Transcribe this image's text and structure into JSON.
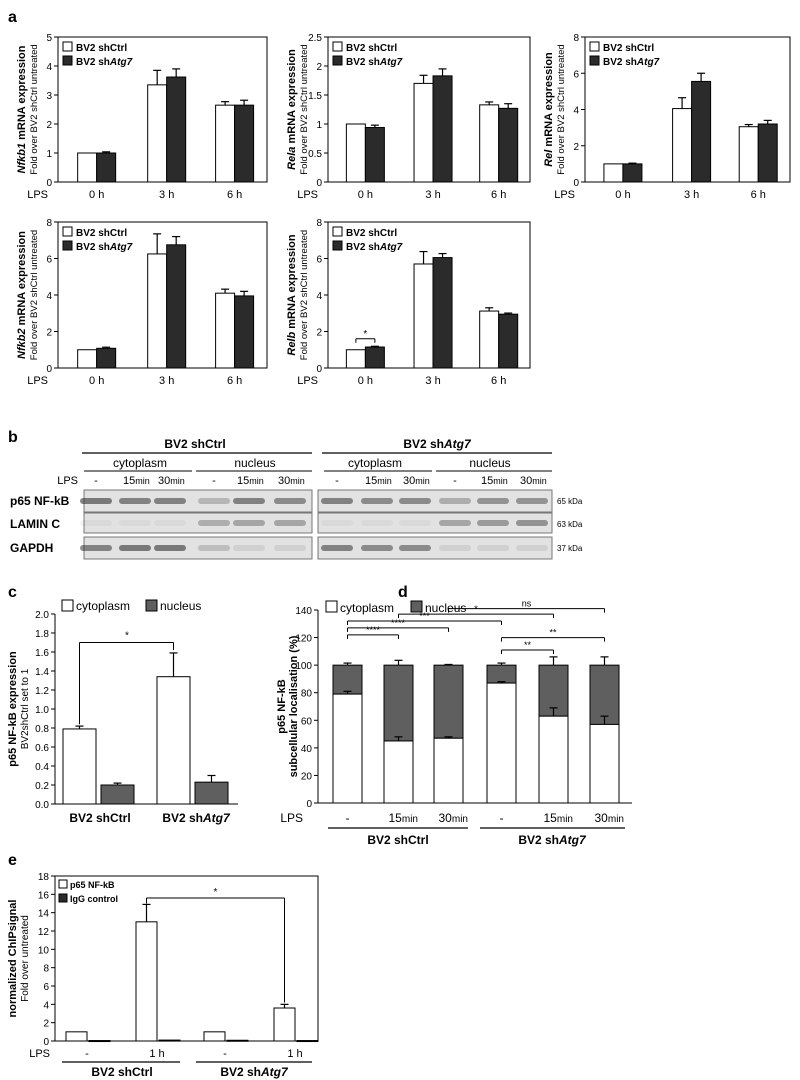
{
  "panels": {
    "a": "a",
    "b": "b",
    "c": "c",
    "d": "d",
    "e": "e"
  },
  "panel_a": {
    "ylabel_prefix": "mRNA expression",
    "ylabel_sub": "Fold over BV2 shCtrl untreated",
    "lps_label": "LPS",
    "timepoints": [
      "0 h",
      "3 h",
      "6 h"
    ],
    "legend": [
      "BV2 shCtrl",
      "BV2 sh",
      "Atg7"
    ],
    "colors": {
      "shCtrl": "#ffffff",
      "shAtg7": "#2b2b2b"
    }
  },
  "chart_data": [
    {
      "id": "a1",
      "type": "bar",
      "gene": "Nfkb1",
      "categories": [
        "0 h",
        "3 h",
        "6 h"
      ],
      "series": [
        {
          "name": "BV2 shCtrl",
          "values": [
            1.0,
            3.35,
            2.65
          ],
          "errors": [
            0.0,
            0.5,
            0.12
          ]
        },
        {
          "name": "BV2 shAtg7",
          "values": [
            1.0,
            3.62,
            2.65
          ],
          "errors": [
            0.04,
            0.28,
            0.17
          ]
        }
      ],
      "ylim": [
        0,
        5
      ],
      "yticks": [
        0,
        1,
        2,
        3,
        4,
        5
      ]
    },
    {
      "id": "a2",
      "type": "bar",
      "gene": "Rela",
      "categories": [
        "0 h",
        "3 h",
        "6 h"
      ],
      "series": [
        {
          "name": "BV2 shCtrl",
          "values": [
            1.0,
            1.7,
            1.33
          ],
          "errors": [
            0.0,
            0.14,
            0.05
          ]
        },
        {
          "name": "BV2 shAtg7",
          "values": [
            0.94,
            1.83,
            1.27
          ],
          "errors": [
            0.04,
            0.12,
            0.08
          ]
        }
      ],
      "ylim": [
        0,
        2.5
      ],
      "yticks": [
        0.0,
        0.5,
        1.0,
        1.5,
        2.0,
        2.5
      ]
    },
    {
      "id": "a3",
      "type": "bar",
      "gene": "Rel",
      "categories": [
        "0 h",
        "3 h",
        "6 h"
      ],
      "series": [
        {
          "name": "BV2 shCtrl",
          "values": [
            1.0,
            4.05,
            3.05
          ],
          "errors": [
            0.0,
            0.6,
            0.12
          ]
        },
        {
          "name": "BV2 shAtg7",
          "values": [
            1.0,
            5.55,
            3.2
          ],
          "errors": [
            0.04,
            0.45,
            0.2
          ]
        }
      ],
      "ylim": [
        0,
        8
      ],
      "yticks": [
        0,
        2,
        4,
        6,
        8
      ]
    },
    {
      "id": "a4",
      "type": "bar",
      "gene": "Nfkb2",
      "categories": [
        "0 h",
        "3 h",
        "6 h"
      ],
      "series": [
        {
          "name": "BV2 shCtrl",
          "values": [
            1.0,
            6.25,
            4.1
          ],
          "errors": [
            0.0,
            1.1,
            0.22
          ]
        },
        {
          "name": "BV2 shAtg7",
          "values": [
            1.08,
            6.75,
            3.95
          ],
          "errors": [
            0.06,
            0.45,
            0.25
          ]
        }
      ],
      "ylim": [
        0,
        8
      ],
      "yticks": [
        0,
        2,
        4,
        6,
        8
      ]
    },
    {
      "id": "a5",
      "type": "bar",
      "gene": "Relb",
      "categories": [
        "0 h",
        "3 h",
        "6 h"
      ],
      "series": [
        {
          "name": "BV2 shCtrl",
          "values": [
            1.0,
            5.7,
            3.12
          ],
          "errors": [
            0.0,
            0.68,
            0.18
          ]
        },
        {
          "name": "BV2 shAtg7",
          "values": [
            1.15,
            6.05,
            2.95
          ],
          "errors": [
            0.04,
            0.22,
            0.06
          ]
        }
      ],
      "ylim": [
        0,
        8
      ],
      "yticks": [
        0,
        2,
        4,
        6,
        8
      ],
      "annotations": [
        {
          "label": "*",
          "between": "0 h"
        }
      ]
    },
    {
      "id": "c",
      "type": "bar",
      "ylabel": "p65 NF-kB expression",
      "ylabel_sub": "BV2shCtrl set to 1",
      "legend": [
        "cytoplasm",
        "nucleus"
      ],
      "categories": [
        "BV2 shCtrl",
        "BV2 shAtg7"
      ],
      "series": [
        {
          "name": "cytoplasm",
          "values": [
            0.79,
            1.34
          ],
          "errors": [
            0.03,
            0.25
          ]
        },
        {
          "name": "nucleus",
          "values": [
            0.2,
            0.23
          ],
          "errors": [
            0.02,
            0.07
          ]
        }
      ],
      "ylim": [
        0,
        2.0
      ],
      "yticks": [
        "0.0",
        "0.2",
        "0.4",
        "0.6",
        "0.8",
        "1.0",
        "1.2",
        "1.4",
        "1.6",
        "1.8",
        "2.0"
      ],
      "annotations": [
        {
          "label": "*",
          "between": [
            "BV2 shCtrl cytoplasm",
            "BV2 shAtg7 cytoplasm"
          ]
        }
      ]
    },
    {
      "id": "d",
      "type": "bar",
      "stacked": true,
      "ylabel": "p65 NF-kB",
      "ylabel_sub": "subcellular localisation (%)",
      "legend": [
        "cytoplasm",
        "nucleus"
      ],
      "lps_label": "LPS",
      "categories": [
        "-",
        "15min",
        "30min",
        "-",
        "15min",
        "30min"
      ],
      "groups": [
        "BV2 shCtrl",
        "BV2 shAtg7"
      ],
      "series": [
        {
          "name": "cytoplasm",
          "values": [
            79,
            45,
            47,
            87,
            63,
            57
          ],
          "errors": [
            2,
            3,
            1,
            1,
            6,
            6
          ]
        },
        {
          "name": "nucleus",
          "values": [
            21,
            55,
            53,
            13,
            37,
            43
          ],
          "errors": [
            1.5,
            3.5,
            0.5,
            1.5,
            6,
            6
          ]
        }
      ],
      "ylim": [
        0,
        140
      ],
      "yticks": [
        0,
        20,
        40,
        60,
        80,
        100,
        120,
        140
      ],
      "annotations": [
        {
          "label": "****",
          "between": [
            0,
            1
          ]
        },
        {
          "label": "****",
          "between": [
            0,
            2
          ]
        },
        {
          "label": "***",
          "between": [
            0,
            3
          ]
        },
        {
          "label": "*",
          "between": [
            1,
            4
          ]
        },
        {
          "label": "ns",
          "between": [
            2,
            5
          ]
        },
        {
          "label": "**",
          "between": [
            3,
            4
          ]
        },
        {
          "label": "**",
          "between": [
            3,
            5
          ]
        }
      ]
    },
    {
      "id": "e",
      "type": "bar",
      "ylabel": "normalized ChIPsignal",
      "ylabel_sub": "Fold over untreated",
      "legend": [
        "p65 NF-kB",
        "IgG control"
      ],
      "lps_label": "LPS",
      "categories": [
        "-",
        "1 h",
        "-",
        "1 h"
      ],
      "groups": [
        "BV2 shCtrl",
        "BV2 shAtg7"
      ],
      "series": [
        {
          "name": "p65 NF-kB",
          "values": [
            1.0,
            13.0,
            1.0,
            3.6
          ],
          "errors": [
            0.0,
            1.9,
            0.0,
            0.4
          ]
        },
        {
          "name": "IgG control",
          "values": [
            0.05,
            0.1,
            0.08,
            0.05
          ],
          "errors": [
            0,
            0,
            0,
            0
          ]
        }
      ],
      "ylim": [
        0,
        18
      ],
      "yticks": [
        0,
        2,
        4,
        6,
        8,
        10,
        12,
        14,
        16,
        18
      ],
      "annotations": [
        {
          "label": "*",
          "between": [
            "BV2 shCtrl 1 h",
            "BV2 shAtg7 1 h"
          ]
        }
      ]
    }
  ],
  "panel_b": {
    "groups": [
      "BV2 shCtrl",
      "BV2 sh",
      "Atg7"
    ],
    "compartments": [
      "cytoplasm",
      "nucleus",
      "cytoplasm",
      "nucleus"
    ],
    "lps_label": "LPS",
    "lanes": [
      "-",
      "15",
      "min",
      "30",
      "min"
    ],
    "rows": [
      "p65 NF-kB",
      "LAMIN C",
      "GAPDH"
    ],
    "sizes": [
      "65 kDa",
      "63 kDa",
      "37 kDa"
    ]
  },
  "group_labels": {
    "shCtrl": "BV2 shCtrl",
    "shAtg7_prefix": "BV2 sh",
    "shAtg7_gene": "Atg7"
  }
}
